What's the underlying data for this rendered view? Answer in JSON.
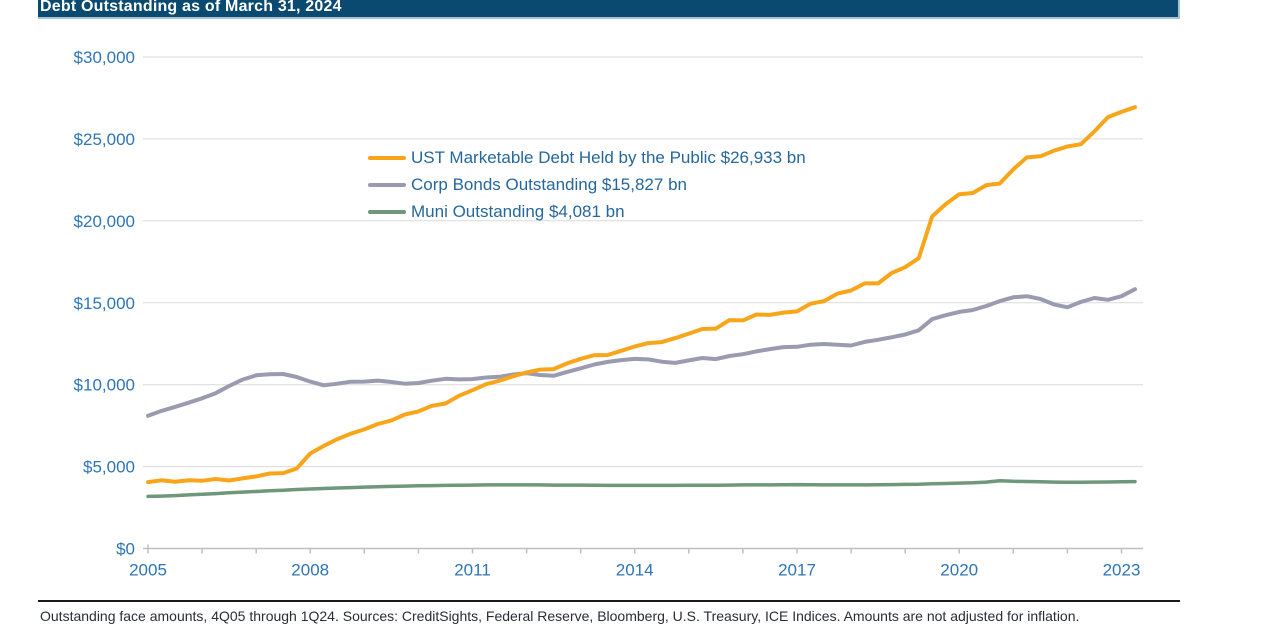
{
  "title_bar": {
    "text": "Debt Outstanding as of March 31, 2024"
  },
  "footnote": {
    "text": "Outstanding face amounts, 4Q05 through 1Q24. Sources: CreditSights, Federal Reserve, Bloomberg, U.S. Treasury, ICE Indices. Amounts are not adjusted for inflation."
  },
  "colors": {
    "title_bar_bg": "#0A4A70",
    "title_text": "#ffffff",
    "axis_label_blue": "#2E75B6",
    "legend_text_blue": "#26679C",
    "gridline": "#DADADA",
    "axis_line": "#BFBFBF",
    "ust_orange": "#F9A51A",
    "corp_gray": "#9A9BB0",
    "muni_green": "#6F9779"
  },
  "chart_data": {
    "type": "line",
    "title": "Debt Outstanding as of March 31, 2024",
    "xlabel": "",
    "ylabel": "",
    "x_frequency": "quarterly",
    "x_range": [
      "4Q05",
      "1Q24"
    ],
    "x_tick_labels": [
      "2005",
      "2008",
      "2011",
      "2014",
      "2017",
      "2020",
      "2023"
    ],
    "y_tick_values": [
      0,
      5000,
      10000,
      15000,
      20000,
      25000,
      30000
    ],
    "y_tick_labels": [
      "$0",
      "$5,000",
      "$10,000",
      "$15,000",
      "$20,000",
      "$25,000",
      "$30,000"
    ],
    "ylim": [
      0,
      30000
    ],
    "grid": "horizontal",
    "legend_position": "inside-top-left",
    "units": "USD billions",
    "series": [
      {
        "name": "UST Marketable Debt Held by the Public",
        "legend_label": "UST Marketable Debt Held by the Public $26,933 bn",
        "latest_value_bn": 26933,
        "color": "#F9A51A",
        "values": [
          4054,
          4160,
          4080,
          4170,
          4130,
          4240,
          4150,
          4280,
          4400,
          4580,
          4600,
          4880,
          5800,
          6260,
          6680,
          7010,
          7270,
          7600,
          7820,
          8180,
          8370,
          8710,
          8850,
          9320,
          9660,
          10030,
          10240,
          10510,
          10750,
          10920,
          10950,
          11300,
          11580,
          11800,
          11810,
          12070,
          12330,
          12540,
          12600,
          12840,
          13120,
          13400,
          13420,
          13940,
          13920,
          14280,
          14260,
          14400,
          14470,
          14940,
          15100,
          15560,
          15750,
          16180,
          16180,
          16810,
          17170,
          17720,
          20270,
          21020,
          21620,
          21700,
          22180,
          22280,
          23140,
          23870,
          23940,
          24280,
          24540,
          24680,
          25460,
          26330,
          26650,
          26933
        ]
      },
      {
        "name": "Corp Bonds Outstanding",
        "legend_label": "Corp Bonds Outstanding $15,827 bn",
        "latest_value_bn": 15827,
        "color": "#9A9BB0",
        "values": [
          8100,
          8400,
          8640,
          8900,
          9170,
          9480,
          9920,
          10310,
          10570,
          10640,
          10650,
          10470,
          10190,
          9960,
          10060,
          10180,
          10190,
          10250,
          10160,
          10060,
          10100,
          10240,
          10360,
          10320,
          10340,
          10440,
          10480,
          10620,
          10700,
          10590,
          10540,
          10780,
          11000,
          11230,
          11390,
          11500,
          11570,
          11540,
          11400,
          11330,
          11480,
          11630,
          11560,
          11750,
          11860,
          12030,
          12170,
          12290,
          12310,
          12440,
          12480,
          12440,
          12390,
          12610,
          12740,
          12890,
          13060,
          13320,
          14000,
          14240,
          14440,
          14560,
          14800,
          15100,
          15330,
          15400,
          15230,
          14900,
          14720,
          15050,
          15290,
          15180,
          15400,
          15827
        ]
      },
      {
        "name": "Muni Outstanding",
        "legend_label": "Muni Outstanding $4,081 bn",
        "latest_value_bn": 4081,
        "color": "#6F9779",
        "values": [
          3180,
          3200,
          3230,
          3270,
          3310,
          3350,
          3400,
          3440,
          3480,
          3520,
          3560,
          3600,
          3630,
          3660,
          3690,
          3720,
          3750,
          3770,
          3790,
          3810,
          3830,
          3840,
          3850,
          3860,
          3870,
          3880,
          3880,
          3880,
          3880,
          3880,
          3870,
          3870,
          3870,
          3860,
          3850,
          3850,
          3850,
          3850,
          3850,
          3850,
          3860,
          3860,
          3860,
          3870,
          3880,
          3880,
          3880,
          3890,
          3900,
          3890,
          3880,
          3880,
          3880,
          3880,
          3890,
          3900,
          3910,
          3920,
          3950,
          3970,
          3990,
          4010,
          4050,
          4130,
          4100,
          4090,
          4070,
          4050,
          4040,
          4040,
          4050,
          4060,
          4070,
          4081
        ]
      }
    ]
  }
}
